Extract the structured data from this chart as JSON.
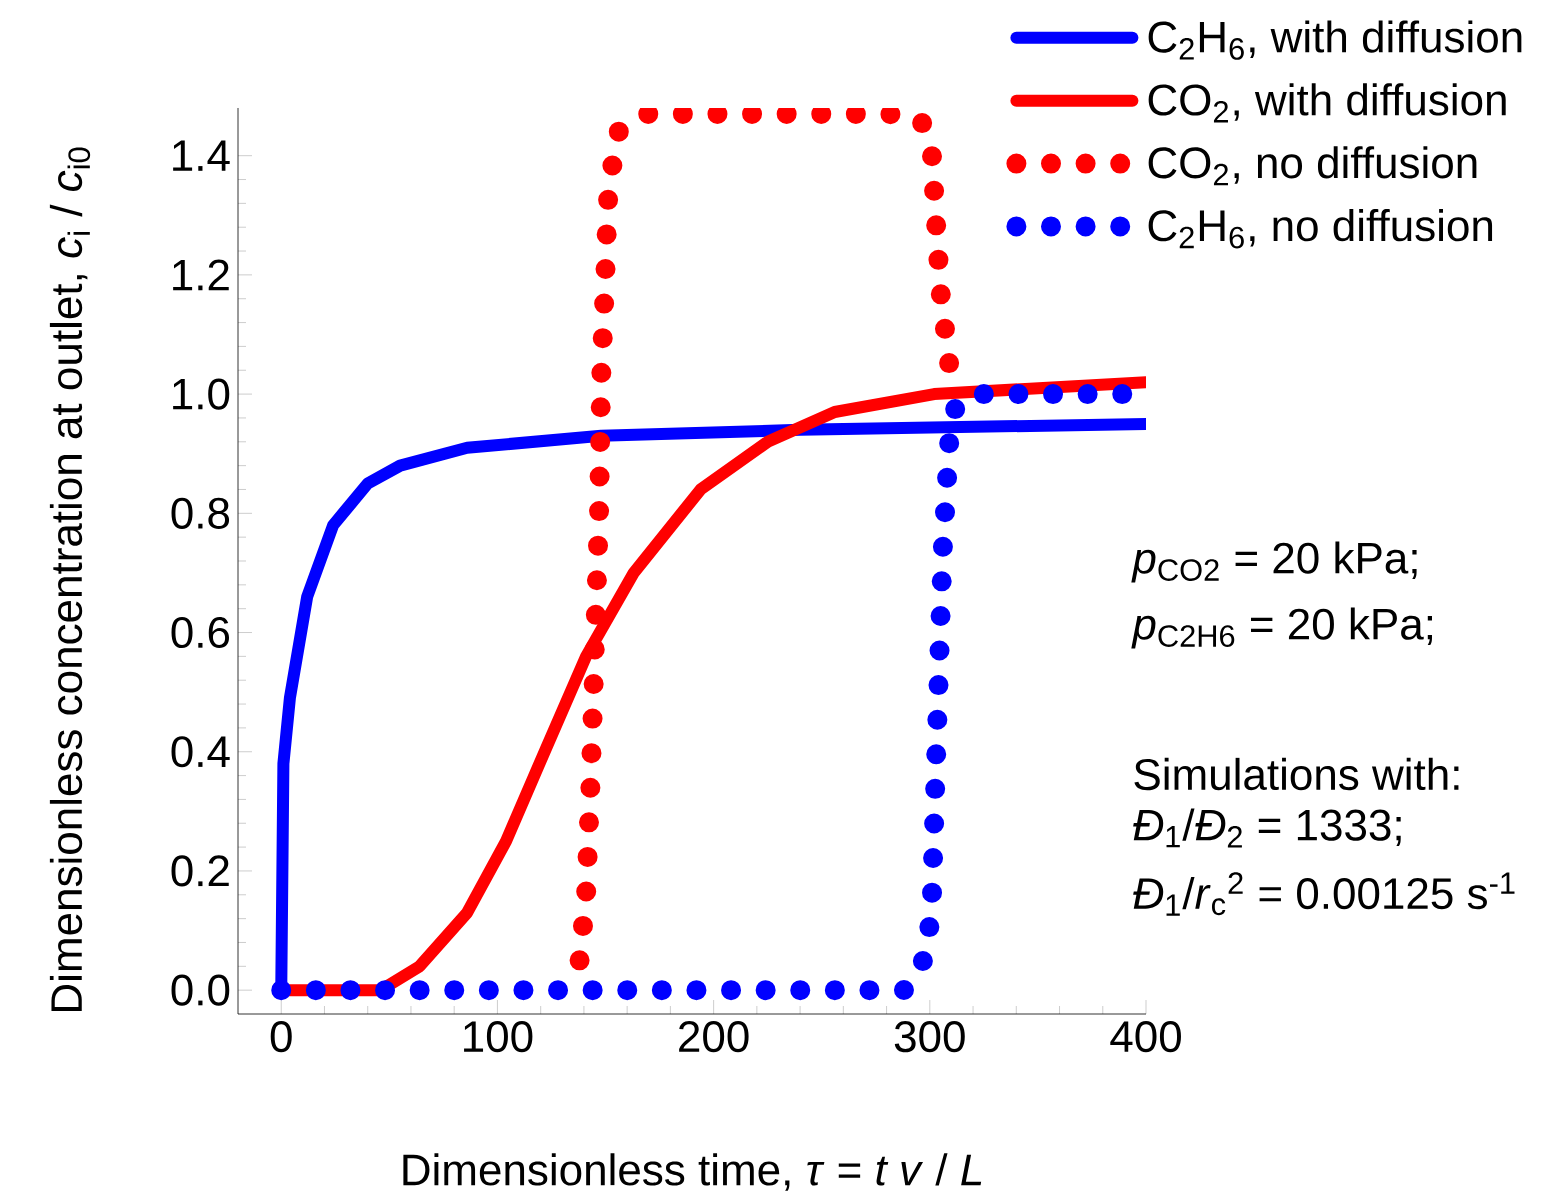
{
  "chart_data": {
    "type": "line",
    "xlabel": "Dimensionless time, *τ* = *t v* / *L*",
    "ylabel": "Dimensionless concentration at outlet, *c*$_{i}$ / *c*$_{i0}$",
    "xlim": [
      -20,
      400
    ],
    "ylim": [
      -0.04,
      1.48
    ],
    "xticks": [
      0,
      100,
      200,
      300,
      400
    ],
    "yticks": [
      {
        "value": 0,
        "label": "0.0"
      },
      {
        "value": 0.2,
        "label": "0.2"
      },
      {
        "value": 0.4,
        "label": "0.4"
      },
      {
        "value": 0.6,
        "label": "0.6"
      },
      {
        "value": 0.8,
        "label": "0.8"
      },
      {
        "value": 1.0,
        "label": "1.0"
      },
      {
        "value": 1.2,
        "label": "1.2"
      },
      {
        "value": 1.4,
        "label": "1.4"
      }
    ],
    "legend": "top right",
    "annotations": [
      "*p*$_{CO2}$ = 20 kPa;",
      "*p*$_{C2H6}$ = 20 kPa;",
      "Simulations with:",
      "*Đ*$_{1}$/*Đ*$_{2}$ = 1333;",
      "*Đ*$_{1}$/*r*$_{c}$$^{2}$ = 0.00125 s$^{-1}$"
    ],
    "series": [
      {
        "name": "C$_{2}$H$_{6}$, with diffusion",
        "color": "#0000ff",
        "line_style": "solid",
        "x": [
          0,
          1,
          4,
          12,
          24,
          40,
          55,
          86,
          148,
          240,
          400
        ],
        "values": [
          0,
          0.38,
          0.49,
          0.66,
          0.78,
          0.85,
          0.88,
          0.91,
          0.93,
          0.94,
          0.95
        ]
      },
      {
        "name": "CO$_{2}$, with diffusion",
        "color": "#ff0000",
        "line_style": "solid",
        "x": [
          0,
          46,
          64,
          86,
          104,
          123,
          141,
          163,
          194,
          225,
          256,
          302,
          400
        ],
        "values": [
          0,
          0,
          0.04,
          0.13,
          0.25,
          0.41,
          0.56,
          0.7,
          0.84,
          0.92,
          0.97,
          1.0,
          1.02
        ]
      },
      {
        "name": "CO$_{2}$, no diffusion",
        "color": "#ff0000",
        "line_style": "dotted",
        "x": [
          138,
          141,
          143,
          145,
          147,
          148,
          150,
          151,
          153,
          156,
          169,
          281,
          296,
          301,
          303,
          305,
          307,
          309
        ],
        "values": [
          0.05,
          0.16,
          0.34,
          0.57,
          0.8,
          1.03,
          1.21,
          1.32,
          1.38,
          1.44,
          1.47,
          1.47,
          1.46,
          1.4,
          1.28,
          1.17,
          1.11,
          1.05
        ]
      },
      {
        "name": "C$_{2}$H$_{6}$, no diffusion",
        "color": "#0000ff",
        "line_style": "dotted",
        "x": [
          0,
          288,
          297,
          300,
          301,
          302,
          303,
          304,
          305,
          306,
          307,
          308,
          309,
          312,
          321,
          400
        ],
        "values": [
          0,
          0,
          0.05,
          0.11,
          0.16,
          0.28,
          0.4,
          0.51,
          0.63,
          0.74,
          0.8,
          0.86,
          0.92,
          0.98,
          1.0,
          1.0
        ]
      }
    ]
  }
}
